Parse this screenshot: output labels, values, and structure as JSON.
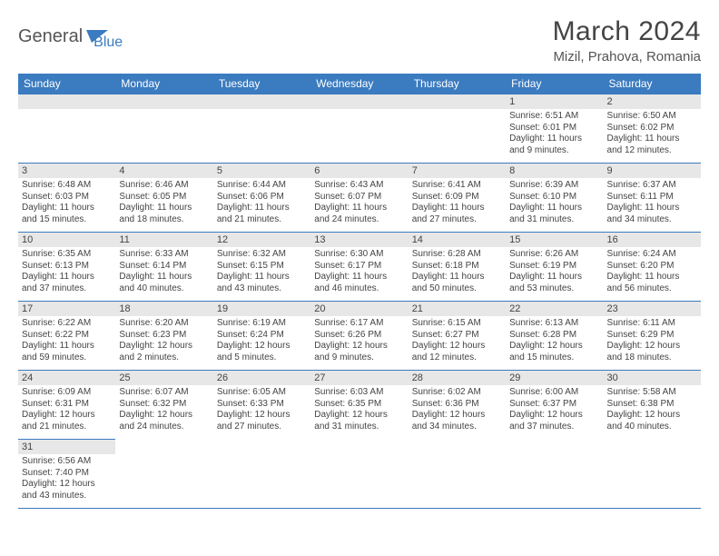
{
  "logo": {
    "text1": "General",
    "text2": "Blue",
    "shape_color": "#3b7bbf"
  },
  "header": {
    "title": "March 2024",
    "location": "Mizil, Prahova, Romania"
  },
  "weekdays": [
    "Sunday",
    "Monday",
    "Tuesday",
    "Wednesday",
    "Thursday",
    "Friday",
    "Saturday"
  ],
  "colors": {
    "header_bar": "#3b7bbf",
    "daynum_bg": "#e7e7e7",
    "cell_border": "#3b7bbf",
    "text": "#444444"
  },
  "fonts": {
    "title_size": 30,
    "location_size": 15,
    "weekday_size": 12,
    "daynum_size": 11,
    "body_size": 10
  },
  "cells": [
    [
      null,
      null,
      null,
      null,
      null,
      {
        "day": "1",
        "sunrise": "Sunrise: 6:51 AM",
        "sunset": "Sunset: 6:01 PM",
        "daylight1": "Daylight: 11 hours",
        "daylight2": "and 9 minutes."
      },
      {
        "day": "2",
        "sunrise": "Sunrise: 6:50 AM",
        "sunset": "Sunset: 6:02 PM",
        "daylight1": "Daylight: 11 hours",
        "daylight2": "and 12 minutes."
      }
    ],
    [
      {
        "day": "3",
        "sunrise": "Sunrise: 6:48 AM",
        "sunset": "Sunset: 6:03 PM",
        "daylight1": "Daylight: 11 hours",
        "daylight2": "and 15 minutes."
      },
      {
        "day": "4",
        "sunrise": "Sunrise: 6:46 AM",
        "sunset": "Sunset: 6:05 PM",
        "daylight1": "Daylight: 11 hours",
        "daylight2": "and 18 minutes."
      },
      {
        "day": "5",
        "sunrise": "Sunrise: 6:44 AM",
        "sunset": "Sunset: 6:06 PM",
        "daylight1": "Daylight: 11 hours",
        "daylight2": "and 21 minutes."
      },
      {
        "day": "6",
        "sunrise": "Sunrise: 6:43 AM",
        "sunset": "Sunset: 6:07 PM",
        "daylight1": "Daylight: 11 hours",
        "daylight2": "and 24 minutes."
      },
      {
        "day": "7",
        "sunrise": "Sunrise: 6:41 AM",
        "sunset": "Sunset: 6:09 PM",
        "daylight1": "Daylight: 11 hours",
        "daylight2": "and 27 minutes."
      },
      {
        "day": "8",
        "sunrise": "Sunrise: 6:39 AM",
        "sunset": "Sunset: 6:10 PM",
        "daylight1": "Daylight: 11 hours",
        "daylight2": "and 31 minutes."
      },
      {
        "day": "9",
        "sunrise": "Sunrise: 6:37 AM",
        "sunset": "Sunset: 6:11 PM",
        "daylight1": "Daylight: 11 hours",
        "daylight2": "and 34 minutes."
      }
    ],
    [
      {
        "day": "10",
        "sunrise": "Sunrise: 6:35 AM",
        "sunset": "Sunset: 6:13 PM",
        "daylight1": "Daylight: 11 hours",
        "daylight2": "and 37 minutes."
      },
      {
        "day": "11",
        "sunrise": "Sunrise: 6:33 AM",
        "sunset": "Sunset: 6:14 PM",
        "daylight1": "Daylight: 11 hours",
        "daylight2": "and 40 minutes."
      },
      {
        "day": "12",
        "sunrise": "Sunrise: 6:32 AM",
        "sunset": "Sunset: 6:15 PM",
        "daylight1": "Daylight: 11 hours",
        "daylight2": "and 43 minutes."
      },
      {
        "day": "13",
        "sunrise": "Sunrise: 6:30 AM",
        "sunset": "Sunset: 6:17 PM",
        "daylight1": "Daylight: 11 hours",
        "daylight2": "and 46 minutes."
      },
      {
        "day": "14",
        "sunrise": "Sunrise: 6:28 AM",
        "sunset": "Sunset: 6:18 PM",
        "daylight1": "Daylight: 11 hours",
        "daylight2": "and 50 minutes."
      },
      {
        "day": "15",
        "sunrise": "Sunrise: 6:26 AM",
        "sunset": "Sunset: 6:19 PM",
        "daylight1": "Daylight: 11 hours",
        "daylight2": "and 53 minutes."
      },
      {
        "day": "16",
        "sunrise": "Sunrise: 6:24 AM",
        "sunset": "Sunset: 6:20 PM",
        "daylight1": "Daylight: 11 hours",
        "daylight2": "and 56 minutes."
      }
    ],
    [
      {
        "day": "17",
        "sunrise": "Sunrise: 6:22 AM",
        "sunset": "Sunset: 6:22 PM",
        "daylight1": "Daylight: 11 hours",
        "daylight2": "and 59 minutes."
      },
      {
        "day": "18",
        "sunrise": "Sunrise: 6:20 AM",
        "sunset": "Sunset: 6:23 PM",
        "daylight1": "Daylight: 12 hours",
        "daylight2": "and 2 minutes."
      },
      {
        "day": "19",
        "sunrise": "Sunrise: 6:19 AM",
        "sunset": "Sunset: 6:24 PM",
        "daylight1": "Daylight: 12 hours",
        "daylight2": "and 5 minutes."
      },
      {
        "day": "20",
        "sunrise": "Sunrise: 6:17 AM",
        "sunset": "Sunset: 6:26 PM",
        "daylight1": "Daylight: 12 hours",
        "daylight2": "and 9 minutes."
      },
      {
        "day": "21",
        "sunrise": "Sunrise: 6:15 AM",
        "sunset": "Sunset: 6:27 PM",
        "daylight1": "Daylight: 12 hours",
        "daylight2": "and 12 minutes."
      },
      {
        "day": "22",
        "sunrise": "Sunrise: 6:13 AM",
        "sunset": "Sunset: 6:28 PM",
        "daylight1": "Daylight: 12 hours",
        "daylight2": "and 15 minutes."
      },
      {
        "day": "23",
        "sunrise": "Sunrise: 6:11 AM",
        "sunset": "Sunset: 6:29 PM",
        "daylight1": "Daylight: 12 hours",
        "daylight2": "and 18 minutes."
      }
    ],
    [
      {
        "day": "24",
        "sunrise": "Sunrise: 6:09 AM",
        "sunset": "Sunset: 6:31 PM",
        "daylight1": "Daylight: 12 hours",
        "daylight2": "and 21 minutes."
      },
      {
        "day": "25",
        "sunrise": "Sunrise: 6:07 AM",
        "sunset": "Sunset: 6:32 PM",
        "daylight1": "Daylight: 12 hours",
        "daylight2": "and 24 minutes."
      },
      {
        "day": "26",
        "sunrise": "Sunrise: 6:05 AM",
        "sunset": "Sunset: 6:33 PM",
        "daylight1": "Daylight: 12 hours",
        "daylight2": "and 27 minutes."
      },
      {
        "day": "27",
        "sunrise": "Sunrise: 6:03 AM",
        "sunset": "Sunset: 6:35 PM",
        "daylight1": "Daylight: 12 hours",
        "daylight2": "and 31 minutes."
      },
      {
        "day": "28",
        "sunrise": "Sunrise: 6:02 AM",
        "sunset": "Sunset: 6:36 PM",
        "daylight1": "Daylight: 12 hours",
        "daylight2": "and 34 minutes."
      },
      {
        "day": "29",
        "sunrise": "Sunrise: 6:00 AM",
        "sunset": "Sunset: 6:37 PM",
        "daylight1": "Daylight: 12 hours",
        "daylight2": "and 37 minutes."
      },
      {
        "day": "30",
        "sunrise": "Sunrise: 5:58 AM",
        "sunset": "Sunset: 6:38 PM",
        "daylight1": "Daylight: 12 hours",
        "daylight2": "and 40 minutes."
      }
    ],
    [
      {
        "day": "31",
        "sunrise": "Sunrise: 6:56 AM",
        "sunset": "Sunset: 7:40 PM",
        "daylight1": "Daylight: 12 hours",
        "daylight2": "and 43 minutes."
      },
      null,
      null,
      null,
      null,
      null,
      null
    ]
  ]
}
